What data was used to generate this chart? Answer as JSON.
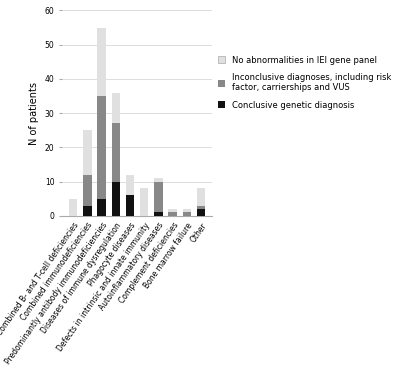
{
  "categories": [
    "Combined B- and T-cell deficiencies",
    "Combined immunodeficiencies",
    "Predominantly antibody immunodeficiencies",
    "Diseases of immune dysregulation",
    "Phagocyte diseases",
    "Defects in intrinsic and innate immunity",
    "Autoinflammatory diseases",
    "Complement deficiencies",
    "Bone marrow failure",
    "Other"
  ],
  "conclusive": [
    0,
    3,
    5,
    10,
    6,
    0,
    1,
    0,
    0,
    2
  ],
  "inconclusive": [
    0,
    9,
    30,
    17,
    0,
    0,
    9,
    1,
    1,
    1
  ],
  "no_abnormalities": [
    5,
    13,
    20,
    9,
    6,
    8,
    1,
    1,
    1,
    5
  ],
  "colors": {
    "conclusive": "#111111",
    "inconclusive": "#888888",
    "no_abnormalities": "#e0e0e0"
  },
  "ylabel": "N of patients",
  "ylim": [
    0,
    60
  ],
  "yticks": [
    0,
    10,
    20,
    30,
    40,
    50,
    60
  ],
  "legend_labels": [
    "No abnormalities in IEI gene panel",
    "Inconclusive diagnoses, including risk\nfactor, carrierships and VUS",
    "Conclusive genetic diagnosis"
  ],
  "background_color": "#ffffff",
  "tick_fontsize": 5.5,
  "ylabel_fontsize": 7,
  "legend_fontsize": 6.0,
  "bar_width": 0.6
}
